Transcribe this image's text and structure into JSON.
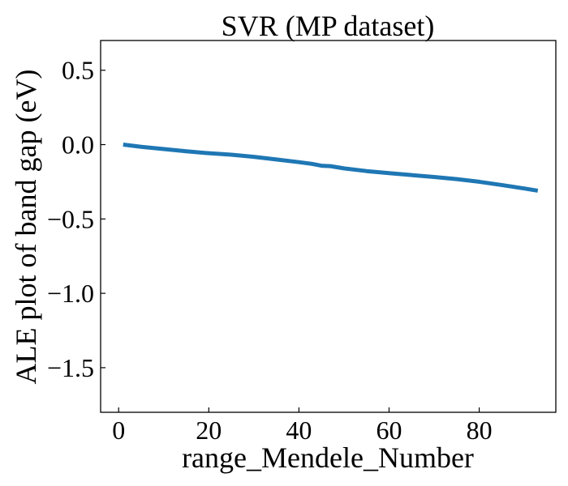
{
  "chart_data": {
    "type": "line",
    "title": "SVR (MP dataset)",
    "xlabel": "range_Mendele_Number",
    "ylabel": "ALE plot of band gap (eV)",
    "xlim": [
      -4,
      97
    ],
    "ylim": [
      -1.8,
      0.7
    ],
    "xticks": [
      0,
      20,
      40,
      60,
      80
    ],
    "yticks": [
      0.5,
      0.0,
      -0.5,
      -1.0,
      -1.5
    ],
    "xtick_labels": [
      "0",
      "20",
      "40",
      "60",
      "80"
    ],
    "ytick_labels": [
      "0.5",
      "0.0",
      "−0.5",
      "−1.0",
      "−1.5"
    ],
    "grid": false,
    "series": [
      {
        "color": "#1f77b4",
        "x": [
          1,
          5,
          10,
          15,
          20,
          25,
          30,
          35,
          40,
          43,
          45,
          47,
          50,
          55,
          60,
          65,
          70,
          75,
          80,
          85,
          90,
          93
        ],
        "y": [
          0.0,
          -0.015,
          -0.03,
          -0.045,
          -0.058,
          -0.068,
          -0.082,
          -0.1,
          -0.118,
          -0.13,
          -0.142,
          -0.145,
          -0.16,
          -0.178,
          -0.192,
          -0.205,
          -0.218,
          -0.232,
          -0.25,
          -0.272,
          -0.295,
          -0.31
        ]
      }
    ]
  }
}
